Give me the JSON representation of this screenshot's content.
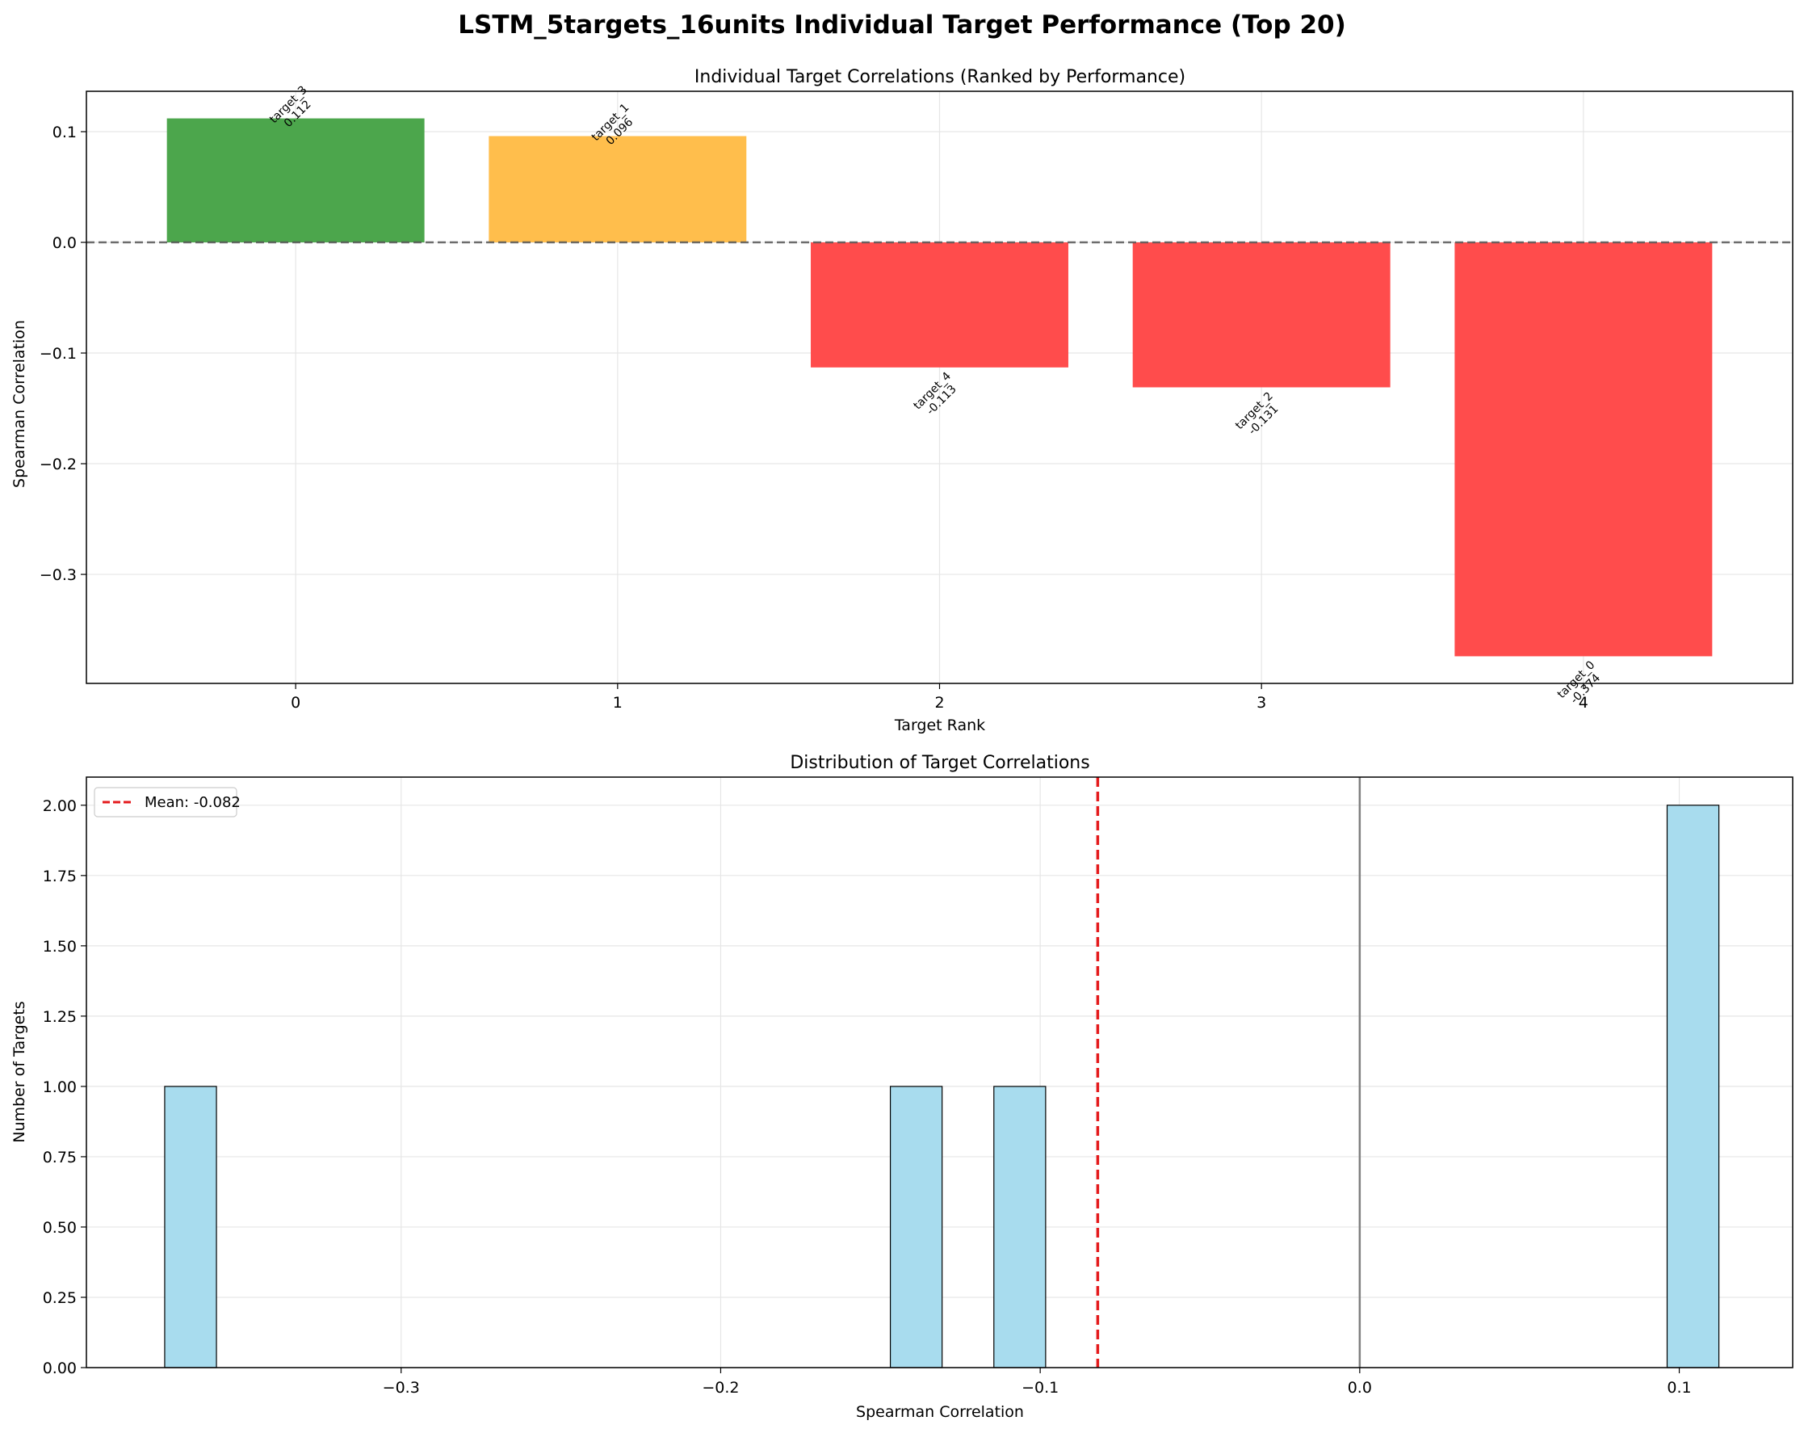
{
  "suptitle": "LSTM_5targets_16units Individual Target Performance (Top 20)",
  "colors": {
    "good": "#4ca64c",
    "mid": "#ffbe4c",
    "bad": "#ff4c4c",
    "hist_fill": "#a8dcee",
    "mean_line": "#e41a1c",
    "zero_line": "#808080"
  },
  "chart_data": [
    {
      "type": "bar",
      "title": "Individual Target Correlations (Ranked by Performance)",
      "xlabel": "Target Rank",
      "ylabel": "Spearman Correlation",
      "categories": [
        "0",
        "1",
        "2",
        "3",
        "4"
      ],
      "target_names": [
        "target_3",
        "target_1",
        "target_4",
        "target_2",
        "target_0"
      ],
      "values": [
        0.112,
        0.096,
        -0.113,
        -0.131,
        -0.374
      ],
      "value_labels": [
        "0.112",
        "0.096",
        "-0.113",
        "-0.131",
        "-0.374"
      ],
      "bar_colors": [
        "good",
        "mid",
        "bad",
        "bad",
        "bad"
      ],
      "xlim": [
        -0.65,
        4.65
      ],
      "ylim": [
        -0.3985,
        0.1365
      ],
      "yticks": [
        0.1,
        0.0,
        -0.1,
        -0.2,
        -0.3
      ],
      "ytick_labels": [
        "0.1",
        "0.0",
        "−0.1",
        "−0.2",
        "−0.3"
      ],
      "reference_line": 0,
      "grid": true
    },
    {
      "type": "histogram",
      "title": "Distribution of Target Correlations",
      "xlabel": "Spearman Correlation",
      "ylabel": "Number of Targets",
      "xlim": [
        -0.3985,
        0.1355
      ],
      "ylim": [
        0,
        2.1
      ],
      "bins": [
        {
          "left": -0.374,
          "right": -0.3578,
          "count": 1
        },
        {
          "left": -0.1469,
          "right": -0.1307,
          "count": 1
        },
        {
          "left": -0.1145,
          "right": -0.0983,
          "count": 1
        },
        {
          "left": 0.0962,
          "right": 0.1124,
          "count": 2
        }
      ],
      "xticks": [
        -0.3,
        -0.2,
        -0.1,
        0.0,
        0.1
      ],
      "xtick_labels": [
        "−0.3",
        "−0.2",
        "−0.1",
        "0.0",
        "0.1"
      ],
      "yticks": [
        0.0,
        0.25,
        0.5,
        0.75,
        1.0,
        1.25,
        1.5,
        1.75,
        2.0
      ],
      "ytick_labels": [
        "0.00",
        "0.25",
        "0.50",
        "0.75",
        "1.00",
        "1.25",
        "1.50",
        "1.75",
        "2.00"
      ],
      "mean": -0.082,
      "legend": "Mean: -0.082",
      "legend_position": "upper-left",
      "reference_line": 0,
      "grid": true
    }
  ]
}
